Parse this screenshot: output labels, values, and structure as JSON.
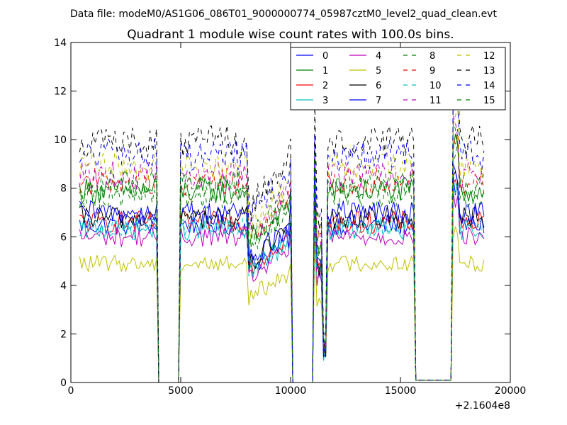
{
  "figure": {
    "suptitle": "Data file: modeM0/AS1G06_086T01_9000000774_05987cztM0_level2_quad_clean.evt"
  },
  "chart_data": {
    "type": "line",
    "title": "Quadrant 1 module wise count rates with 100.0s bins.",
    "xlabel": "",
    "ylabel": "",
    "x_offset_label": "+2.1604e8",
    "xlim": [
      0,
      20000
    ],
    "ylim": [
      0,
      14
    ],
    "xticks": [
      0,
      5000,
      10000,
      15000,
      20000
    ],
    "xtick_labels": [
      "0",
      "5000",
      "10000",
      "15000",
      "20000"
    ],
    "yticks": [
      0,
      2,
      4,
      6,
      8,
      10,
      12,
      14
    ],
    "ytick_labels": [
      "0",
      "2",
      "4",
      "6",
      "8",
      "10",
      "12",
      "14"
    ],
    "grid": false,
    "legend_position": "top-right",
    "legend_columns": 4,
    "bin_size_s": 100,
    "segments": [
      {
        "x_start": 400,
        "x_end": 3900
      },
      {
        "x_start": 4950,
        "x_end": 8100
      },
      {
        "x_start": 8100,
        "x_end": 10000
      },
      {
        "x_start": 11100,
        "x_end": 11500
      },
      {
        "x_start": 11600,
        "x_end": 15600
      },
      {
        "x_start": 17400,
        "x_end": 18800
      }
    ],
    "gaps": [
      {
        "x_start": 3900,
        "x_end": 4950,
        "level": 0
      },
      {
        "x_start": 10000,
        "x_end": 11100,
        "level": 0
      },
      {
        "x_start": 15600,
        "x_end": 17400,
        "level": 0.1
      }
    ],
    "dip_at": {
      "x": 11550,
      "value": 1.2
    },
    "series": [
      {
        "name": "0",
        "color": "#0000ff",
        "dash": "solid",
        "mean_level": 6.5
      },
      {
        "name": "1",
        "color": "#008000",
        "dash": "solid",
        "mean_level": 7.9
      },
      {
        "name": "2",
        "color": "#ff0000",
        "dash": "solid",
        "mean_level": 6.6
      },
      {
        "name": "3",
        "color": "#00bfbf",
        "dash": "solid",
        "mean_level": 6.3
      },
      {
        "name": "4",
        "color": "#bf00bf",
        "dash": "solid",
        "mean_level": 6.0
      },
      {
        "name": "5",
        "color": "#bfbf00",
        "dash": "solid",
        "mean_level": 4.9
      },
      {
        "name": "6",
        "color": "#000000",
        "dash": "solid",
        "mean_level": 6.8
      },
      {
        "name": "7",
        "color": "#0000ff",
        "dash": "solid",
        "mean_level": 7.0
      },
      {
        "name": "8",
        "color": "#008000",
        "dash": "dashed",
        "mean_level": 7.7
      },
      {
        "name": "9",
        "color": "#ff0000",
        "dash": "dashed",
        "mean_level": 8.3
      },
      {
        "name": "10",
        "color": "#00bfbf",
        "dash": "dashed",
        "mean_level": 6.4
      },
      {
        "name": "11",
        "color": "#bf00bf",
        "dash": "dashed",
        "mean_level": 8.5
      },
      {
        "name": "12",
        "color": "#bfbf00",
        "dash": "dashed",
        "mean_level": 8.9
      },
      {
        "name": "13",
        "color": "#000000",
        "dash": "dashed",
        "mean_level": 9.9
      },
      {
        "name": "14",
        "color": "#0000ff",
        "dash": "dashed",
        "mean_level": 9.4
      },
      {
        "name": "15",
        "color": "#008000",
        "dash": "dashed",
        "mean_level": 8.2
      }
    ]
  }
}
